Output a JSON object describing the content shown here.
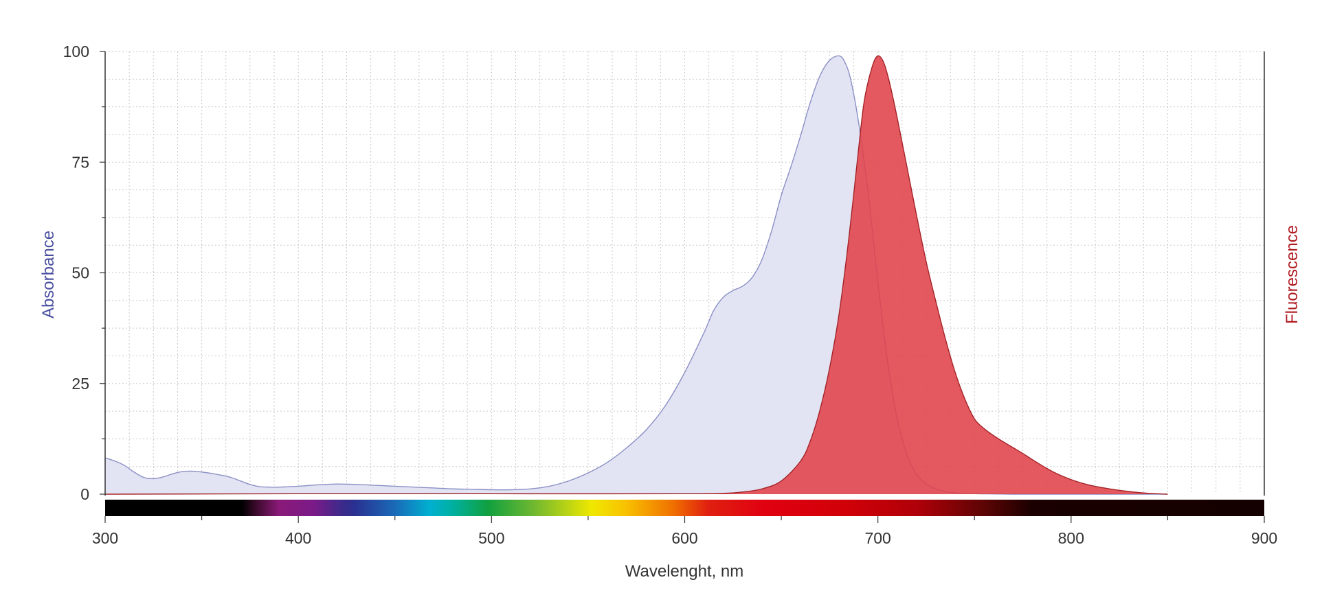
{
  "chart_data": {
    "type": "area",
    "title": "",
    "xlabel": "Wavelenght, nm",
    "ylabel_left": "Absorbance",
    "ylabel_right": "Fluorescence",
    "xlim": [
      300,
      900
    ],
    "ylim": [
      0,
      100
    ],
    "x_ticks": [
      "300",
      "400",
      "500",
      "600",
      "700",
      "800",
      "900"
    ],
    "y_ticks": [
      "0",
      "25",
      "50",
      "75",
      "100"
    ],
    "grid": true,
    "spectrum_bar": true,
    "colors": {
      "absorbance_line": "#8a8fc4",
      "absorbance_fill": "#e2e4f4",
      "fluorescence_line": "#a32428",
      "fluorescence_fill": "#e0424a",
      "ylabel_left": "#4a4fa0",
      "ylabel_right": "#b01c22"
    },
    "series": [
      {
        "name": "Absorbance",
        "x": [
          300,
          305,
          310,
          315,
          320,
          325,
          330,
          335,
          340,
          345,
          350,
          355,
          360,
          365,
          370,
          375,
          380,
          385,
          390,
          400,
          410,
          420,
          430,
          440,
          450,
          460,
          470,
          480,
          490,
          500,
          510,
          520,
          530,
          540,
          550,
          560,
          570,
          580,
          590,
          600,
          610,
          615,
          620,
          625,
          630,
          635,
          640,
          645,
          650,
          655,
          660,
          665,
          670,
          675,
          680,
          683,
          686,
          690,
          695,
          700,
          705,
          710,
          715,
          720,
          725,
          730,
          735,
          740,
          750,
          760,
          770,
          780,
          790,
          800,
          820,
          850
        ],
        "values": [
          8.2,
          7.5,
          6.5,
          5.0,
          3.8,
          3.5,
          3.9,
          4.6,
          5.1,
          5.2,
          5.0,
          4.7,
          4.3,
          3.8,
          3.0,
          2.2,
          1.7,
          1.6,
          1.6,
          1.8,
          2.1,
          2.3,
          2.2,
          2.0,
          1.8,
          1.6,
          1.4,
          1.2,
          1.1,
          1.0,
          1.0,
          1.2,
          1.8,
          3.0,
          4.8,
          7.2,
          10.5,
          14.5,
          20.0,
          27.5,
          36.5,
          41.5,
          44.5,
          46.0,
          47.0,
          49.0,
          53.0,
          59.5,
          67.5,
          74.0,
          81.0,
          88.5,
          94.5,
          98.0,
          99.0,
          97.5,
          93.5,
          84.0,
          68.0,
          48.0,
          30.0,
          17.0,
          9.0,
          4.5,
          2.3,
          1.2,
          0.6,
          0.3,
          0.1,
          0.05,
          0.0,
          0.0,
          0.0,
          0.0,
          0.0,
          0.0
        ]
      },
      {
        "name": "Fluorescence",
        "x": [
          300,
          400,
          500,
          600,
          620,
          630,
          640,
          650,
          660,
          665,
          670,
          675,
          680,
          685,
          690,
          693,
          697,
          700,
          703,
          706,
          710,
          715,
          720,
          725,
          730,
          735,
          740,
          745,
          750,
          755,
          760,
          765,
          770,
          775,
          780,
          790,
          800,
          810,
          820,
          830,
          840,
          850
        ],
        "values": [
          0.0,
          0.1,
          0.1,
          0.1,
          0.2,
          0.5,
          1.2,
          3.0,
          7.5,
          12.0,
          19.0,
          28.5,
          41.0,
          58.0,
          78.0,
          89.0,
          96.5,
          99.0,
          97.5,
          93.0,
          85.0,
          74.0,
          63.0,
          52.5,
          43.5,
          35.0,
          27.5,
          21.5,
          17.0,
          14.8,
          13.2,
          11.8,
          10.5,
          9.2,
          7.8,
          5.2,
          3.3,
          2.0,
          1.2,
          0.6,
          0.2,
          0.0
        ]
      }
    ]
  }
}
